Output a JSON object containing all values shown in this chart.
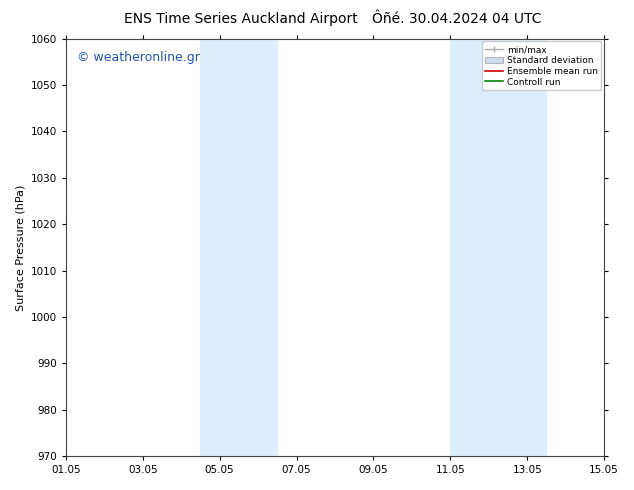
{
  "title_left": "ENS Time Series Auckland Airport",
  "title_right": "Ôñé. 30.04.2024 04 UTC",
  "ylabel": "Surface Pressure (hPa)",
  "watermark": "© weatheronline.gr",
  "ylim": [
    970,
    1060
  ],
  "yticks": [
    970,
    980,
    990,
    1000,
    1010,
    1020,
    1030,
    1040,
    1050,
    1060
  ],
  "xlim": [
    0,
    14
  ],
  "xtick_labels": [
    "01.05",
    "03.05",
    "05.05",
    "07.05",
    "09.05",
    "11.05",
    "13.05",
    "15.05"
  ],
  "xtick_positions": [
    0,
    2,
    4,
    6,
    8,
    10,
    12,
    14
  ],
  "shaded_bands": [
    {
      "start": 3.5,
      "end": 5.5,
      "color": "#ddeeff"
    },
    {
      "start": 10.0,
      "end": 12.5,
      "color": "#ddeeff"
    }
  ],
  "legend_entries": [
    {
      "label": "min/max",
      "color": "#aaaaaa",
      "type": "errorbar"
    },
    {
      "label": "Standard deviation",
      "color": "#ccddee",
      "type": "fill"
    },
    {
      "label": "Ensemble mean run",
      "color": "#ff0000",
      "type": "line"
    },
    {
      "label": "Controll run",
      "color": "#008800",
      "type": "line"
    }
  ],
  "background_color": "#ffffff",
  "plot_bg_color": "#ffffff",
  "title_fontsize": 10,
  "tick_fontsize": 7.5,
  "label_fontsize": 8,
  "watermark_color": "#2255bb",
  "watermark_fontsize": 9
}
